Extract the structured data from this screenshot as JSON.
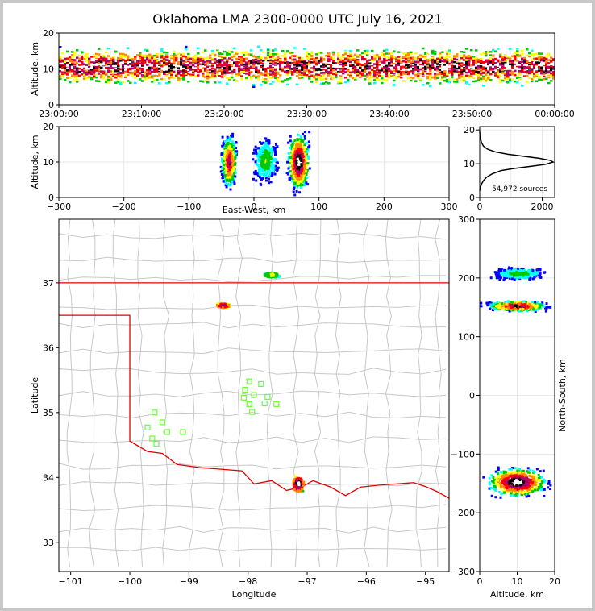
{
  "title": "Oklahoma LMA 2300-0000 UTC July 16, 2021",
  "colors": {
    "state_border": "#e00000",
    "county_lines": "#c8c8c8",
    "station": "#66ff33",
    "axis": "#000000",
    "grid": "#e8e8e8"
  },
  "chart_data": [
    {
      "type": "heatmap",
      "panel": "altitude-time",
      "ylabel": "Altitude, km",
      "xlabel": "",
      "ylim": [
        0,
        20
      ],
      "yticks": [
        "0",
        "10",
        "20"
      ],
      "xticks": [
        "23:00:00",
        "23:10:00",
        "23:20:00",
        "23:30:00",
        "23:40:00",
        "23:50:00",
        "00:00:00"
      ],
      "xlim_minutes": [
        0,
        60
      ],
      "core_altitude_km": 10.5
    },
    {
      "type": "heatmap",
      "panel": "altitude-east-west",
      "xlabel": "East-West, km",
      "ylabel": "Altitude, km",
      "xlim": [
        -300,
        300
      ],
      "ylim": [
        0,
        20
      ],
      "xticks": [
        "−300",
        "−200",
        "−100",
        "0",
        "100",
        "200",
        "300"
      ],
      "yticks": [
        "0",
        "10",
        "20"
      ],
      "clusters": [
        {
          "x": -38,
          "width": 26,
          "alt": 10,
          "height": 16,
          "intensity": 0.8
        },
        {
          "x": 18,
          "width": 44,
          "alt": 10.5,
          "height": 14,
          "intensity": 0.35
        },
        {
          "x": 69,
          "width": 36,
          "alt": 10,
          "height": 18,
          "intensity": 1.0
        }
      ]
    },
    {
      "type": "line",
      "panel": "altitude-histogram",
      "annotation": "54,972 sources",
      "xlim": [
        0,
        2400
      ],
      "ylim": [
        0,
        21
      ],
      "xticks": [
        "0",
        "2000"
      ],
      "yticks": [
        "0",
        "10",
        "20"
      ],
      "x": [
        0,
        20,
        60,
        120,
        220,
        400,
        700,
        1100,
        1600,
        2100,
        2350,
        2250,
        1900,
        1400,
        900,
        500,
        250,
        120,
        60,
        30,
        10,
        0
      ],
      "y": [
        2,
        3,
        4,
        5,
        6,
        7,
        8,
        8.6,
        9.2,
        9.8,
        10.5,
        11,
        11.6,
        12.2,
        12.8,
        13.5,
        14.3,
        15.2,
        16.2,
        17.2,
        18.2,
        19.5
      ]
    },
    {
      "type": "scatter",
      "panel": "plan-view",
      "xlabel": "Longitude",
      "ylabel": "Latitude",
      "xlim": [
        -101.2,
        -94.6
      ],
      "ylim": [
        32.55,
        37.98
      ],
      "xticks": [
        "−101",
        "−100",
        "−99",
        "−98",
        "−97",
        "−96",
        "−95"
      ],
      "yticks": [
        "33",
        "34",
        "35",
        "36",
        "37"
      ],
      "storms": [
        {
          "lon": -97.6,
          "lat": 37.12,
          "rx": 0.25,
          "ry": 0.08,
          "intensity": 0.4
        },
        {
          "lon": -98.42,
          "lat": 36.65,
          "rx": 0.22,
          "ry": 0.07,
          "intensity": 0.8
        },
        {
          "lon": -97.15,
          "lat": 33.9,
          "rx": 0.18,
          "ry": 0.22,
          "intensity": 0.9
        }
      ],
      "stations": [
        [
          -99.58,
          35.0
        ],
        [
          -99.45,
          34.85
        ],
        [
          -99.7,
          34.77
        ],
        [
          -99.37,
          34.7
        ],
        [
          -99.62,
          34.6
        ],
        [
          -99.55,
          34.52
        ],
        [
          -99.1,
          34.7
        ],
        [
          -97.98,
          35.48
        ],
        [
          -97.78,
          35.44
        ],
        [
          -98.05,
          35.35
        ],
        [
          -97.9,
          35.27
        ],
        [
          -98.07,
          35.23
        ],
        [
          -97.67,
          35.24
        ],
        [
          -97.98,
          35.13
        ],
        [
          -97.72,
          35.14
        ],
        [
          -97.52,
          35.13
        ],
        [
          -97.93,
          35.01
        ]
      ]
    },
    {
      "type": "heatmap",
      "panel": "altitude-north-south",
      "xlabel": "Altitude, km",
      "ylabel": "North-South, km",
      "xlim": [
        0,
        20
      ],
      "ylim": [
        -300,
        300
      ],
      "xticks": [
        "0",
        "10",
        "20"
      ],
      "yticks": [
        "−300",
        "−200",
        "−100",
        "0",
        "100",
        "200",
        "300"
      ],
      "clusters": [
        {
          "ns": 207,
          "nsh": 22,
          "alt": 10.5,
          "w": 15,
          "intensity": 0.35
        },
        {
          "ns": 152,
          "nsh": 20,
          "alt": 10,
          "w": 18,
          "intensity": 0.85
        },
        {
          "ns": -148,
          "nsh": 55,
          "alt": 10,
          "w": 18,
          "intensity": 1.0
        }
      ]
    }
  ]
}
